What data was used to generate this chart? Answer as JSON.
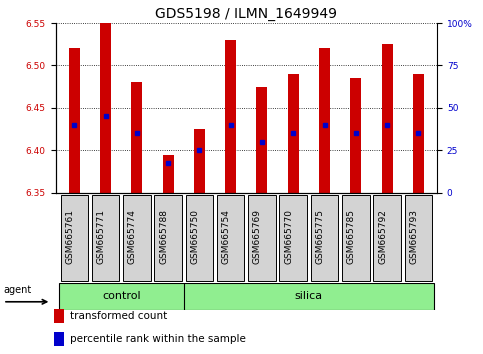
{
  "title": "GDS5198 / ILMN_1649949",
  "samples": [
    "GSM665761",
    "GSM665771",
    "GSM665774",
    "GSM665788",
    "GSM665750",
    "GSM665754",
    "GSM665769",
    "GSM665770",
    "GSM665775",
    "GSM665785",
    "GSM665792",
    "GSM665793"
  ],
  "bar_tops": [
    6.52,
    6.55,
    6.48,
    6.395,
    6.425,
    6.53,
    6.475,
    6.49,
    6.52,
    6.485,
    6.525,
    6.49
  ],
  "bar_bottoms": [
    6.35,
    6.35,
    6.35,
    6.35,
    6.35,
    6.35,
    6.35,
    6.35,
    6.35,
    6.35,
    6.35,
    6.35
  ],
  "blue_dot_values": [
    6.43,
    6.44,
    6.42,
    6.385,
    6.4,
    6.43,
    6.41,
    6.42,
    6.43,
    6.42,
    6.43,
    6.42
  ],
  "groups": {
    "control": [
      0,
      1,
      2,
      3
    ],
    "silica": [
      4,
      5,
      6,
      7,
      8,
      9,
      10,
      11
    ]
  },
  "ylim": [
    6.35,
    6.55
  ],
  "yticks_left": [
    6.35,
    6.4,
    6.45,
    6.5,
    6.55
  ],
  "yticks_right": [
    0,
    25,
    50,
    75,
    100
  ],
  "bar_color": "#cc0000",
  "dot_color": "#0000cc",
  "group_color": "#90ee90",
  "sample_box_color": "#d3d3d3",
  "bg_color": "#ffffff",
  "title_fontsize": 10,
  "tick_fontsize": 6.5,
  "label_fontsize": 8,
  "bar_width": 0.35,
  "agent_label": "agent",
  "control_label": "control",
  "silica_label": "silica",
  "legend_items": [
    "transformed count",
    "percentile rank within the sample"
  ]
}
